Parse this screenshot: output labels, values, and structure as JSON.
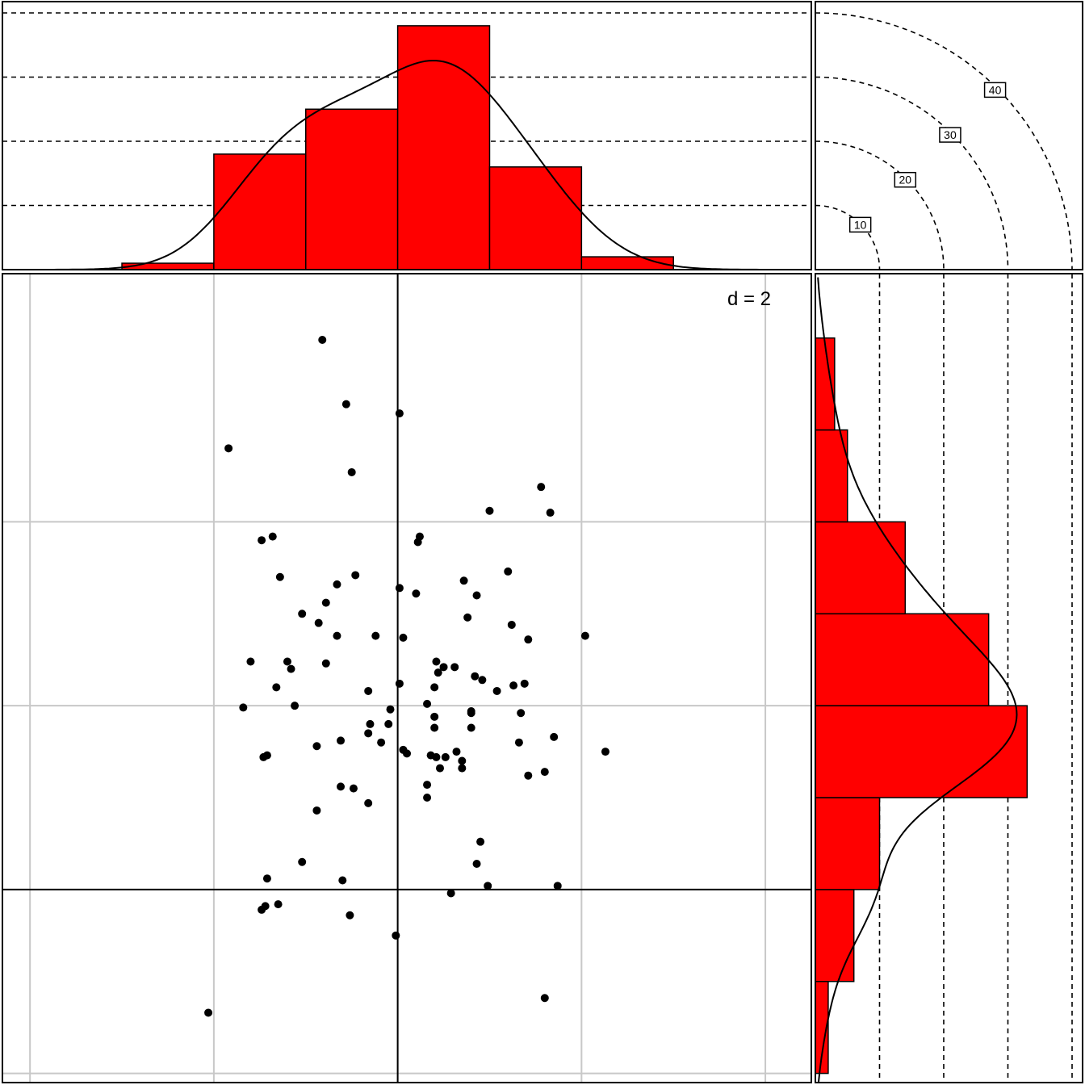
{
  "chart_data": {
    "type": "scatter",
    "title": "",
    "annotation": "d = 2",
    "grid_x": [
      -2,
      -1,
      0,
      1,
      2
    ],
    "grid_y": [
      -1,
      0,
      1,
      2
    ],
    "origin": [
      0,
      0
    ],
    "xlim": [
      -2.15,
      2.25
    ],
    "ylim": [
      -1.05,
      3.35
    ],
    "points": [
      [
        -0.41,
        2.99
      ],
      [
        -0.28,
        2.64
      ],
      [
        0.01,
        2.59
      ],
      [
        -0.92,
        2.4
      ],
      [
        -0.25,
        2.27
      ],
      [
        0.78,
        2.19
      ],
      [
        0.5,
        2.06
      ],
      [
        0.83,
        2.05
      ],
      [
        0.12,
        1.92
      ],
      [
        -0.74,
        1.9
      ],
      [
        0.11,
        1.89
      ],
      [
        -0.68,
        1.92
      ],
      [
        -0.23,
        1.71
      ],
      [
        0.6,
        1.73
      ],
      [
        -0.64,
        1.7
      ],
      [
        0.36,
        1.68
      ],
      [
        -0.33,
        1.66
      ],
      [
        0.01,
        1.64
      ],
      [
        0.1,
        1.61
      ],
      [
        0.43,
        1.6
      ],
      [
        -0.39,
        1.56
      ],
      [
        0.38,
        1.48
      ],
      [
        -0.52,
        1.5
      ],
      [
        0.62,
        1.44
      ],
      [
        -0.43,
        1.45
      ],
      [
        -0.33,
        1.38
      ],
      [
        -0.12,
        1.38
      ],
      [
        0.03,
        1.37
      ],
      [
        0.71,
        1.36
      ],
      [
        1.02,
        1.38
      ],
      [
        -0.8,
        1.24
      ],
      [
        -0.6,
        1.24
      ],
      [
        -0.39,
        1.23
      ],
      [
        -0.58,
        1.2
      ],
      [
        0.21,
        1.24
      ],
      [
        0.25,
        1.21
      ],
      [
        0.31,
        1.21
      ],
      [
        0.22,
        1.18
      ],
      [
        0.42,
        1.16
      ],
      [
        0.46,
        1.14
      ],
      [
        0.01,
        1.12
      ],
      [
        0.63,
        1.11
      ],
      [
        0.69,
        1.12
      ],
      [
        -0.66,
        1.1
      ],
      [
        0.2,
        1.1
      ],
      [
        -0.16,
        1.08
      ],
      [
        0.54,
        1.08
      ],
      [
        -0.56,
        1.0
      ],
      [
        -0.84,
        0.99
      ],
      [
        -0.04,
        0.98
      ],
      [
        0.16,
        1.01
      ],
      [
        0.4,
        0.96
      ],
      [
        0.4,
        0.97
      ],
      [
        0.2,
        0.94
      ],
      [
        0.67,
        0.96
      ],
      [
        -0.05,
        0.9
      ],
      [
        -0.15,
        0.9
      ],
      [
        0.2,
        0.88
      ],
      [
        0.4,
        0.88
      ],
      [
        -0.16,
        0.85
      ],
      [
        -0.31,
        0.81
      ],
      [
        0.85,
        0.83
      ],
      [
        0.66,
        0.8
      ],
      [
        -0.09,
        0.8
      ],
      [
        -0.44,
        0.78
      ],
      [
        0.03,
        0.76
      ],
      [
        0.18,
        0.73
      ],
      [
        0.32,
        0.75
      ],
      [
        -0.73,
        0.72
      ],
      [
        -0.71,
        0.73
      ],
      [
        0.21,
        0.72
      ],
      [
        0.26,
        0.72
      ],
      [
        0.35,
        0.7
      ],
      [
        1.13,
        0.75
      ],
      [
        0.05,
        0.74
      ],
      [
        0.35,
        0.66
      ],
      [
        0.23,
        0.66
      ],
      [
        0.8,
        0.64
      ],
      [
        0.71,
        0.62
      ],
      [
        0.16,
        0.57
      ],
      [
        -0.31,
        0.56
      ],
      [
        -0.24,
        0.55
      ],
      [
        0.16,
        0.5
      ],
      [
        -0.16,
        0.47
      ],
      [
        -0.44,
        0.43
      ],
      [
        0.45,
        0.26
      ],
      [
        0.43,
        0.14
      ],
      [
        -0.52,
        0.15
      ],
      [
        -0.71,
        0.06
      ],
      [
        -0.3,
        0.05
      ],
      [
        0.49,
        0.02
      ],
      [
        0.87,
        0.02
      ],
      [
        0.29,
        -0.02
      ],
      [
        -0.72,
        -0.09
      ],
      [
        -0.65,
        -0.08
      ],
      [
        -0.74,
        -0.11
      ],
      [
        -0.26,
        -0.14
      ],
      [
        -0.01,
        -0.25
      ],
      [
        0.8,
        -0.59
      ],
      [
        -1.03,
        -0.67
      ]
    ],
    "x_histogram": {
      "bin_edges": [
        -1.5,
        -1.0,
        -0.5,
        0.0,
        0.5,
        1.0,
        1.5
      ],
      "counts": [
        1,
        18,
        25,
        38,
        16,
        2
      ]
    },
    "y_histogram": {
      "bin_edges": [
        -1.0,
        -0.5,
        0.0,
        0.5,
        1.0,
        1.5,
        2.0,
        2.5,
        3.0
      ],
      "counts": [
        2,
        6,
        10,
        33,
        27,
        14,
        5,
        3
      ]
    },
    "count_reference_labels": [
      "10",
      "20",
      "30",
      "40"
    ],
    "count_reference_values": [
      10,
      20,
      30,
      40
    ]
  }
}
